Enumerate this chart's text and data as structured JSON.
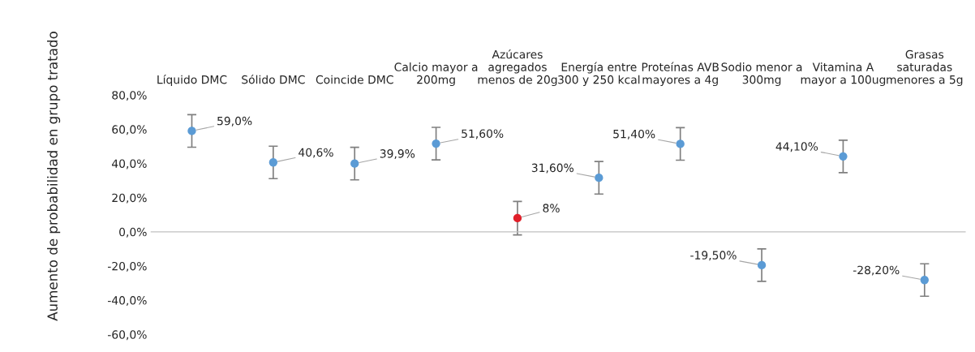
{
  "chart_data": {
    "type": "scatter",
    "ylabel": "Aumento de probabilidad en grupo tratado",
    "categories": [
      "Líquido DMC",
      "Sólido DMC",
      "Coincide DMC",
      "Calcio mayor a\n200mg",
      "Azúcares\nagregados\nmenos de 20g",
      "Energía entre\n300 y 250 kcal",
      "Proteínas AVB\nmayores a 4g",
      "Sodio menor a\n300mg",
      "Vitamina A\nmayor a 100ug",
      "Grasas\nsaturadas\nmenores a 5g"
    ],
    "values": [
      59.0,
      40.6,
      39.9,
      51.6,
      8,
      31.6,
      51.4,
      -19.5,
      44.1,
      -28.2
    ],
    "errors": [
      9.5,
      9.5,
      9.5,
      9.5,
      9.8,
      9.5,
      9.5,
      9.5,
      9.5,
      9.5
    ],
    "value_labels": [
      "59,0%",
      "40,6%",
      "39,9%",
      "51,60%",
      "8%",
      "31,60%",
      "51,40%",
      "-19,50%",
      "44,10%",
      "-28,20%"
    ],
    "colors": [
      "#5b9bd5",
      "#5b9bd5",
      "#5b9bd5",
      "#5b9bd5",
      "#e0202a",
      "#5b9bd5",
      "#5b9bd5",
      "#5b9bd5",
      "#5b9bd5",
      "#5b9bd5"
    ],
    "marker": "circle",
    "ylim": [
      -60,
      80
    ],
    "yticks": [
      {
        "value": 80,
        "label": "80,0%"
      },
      {
        "value": 60,
        "label": "60,0%"
      },
      {
        "value": 40,
        "label": "40,0%"
      },
      {
        "value": 20,
        "label": "20,0%"
      },
      {
        "value": 0,
        "label": "0,0%"
      },
      {
        "value": -20,
        "label": "-20,0%"
      },
      {
        "value": -40,
        "label": "-40,0%"
      },
      {
        "value": -60,
        "label": "-60,0%"
      }
    ],
    "legend": false
  }
}
